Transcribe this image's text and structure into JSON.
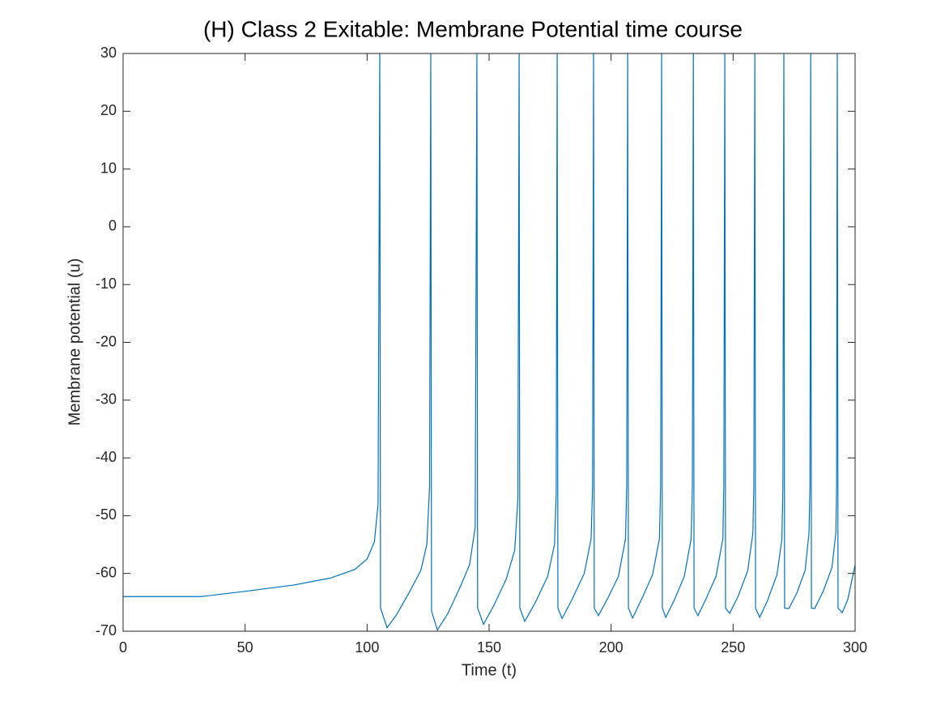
{
  "chart_data": {
    "type": "line",
    "title": "(H) Class 2 Exitable: Membrane Potential time course",
    "x_label": "Time (t)",
    "y_label": "Membrane potential (u)",
    "xlim": [
      0,
      300
    ],
    "ylim": [
      -70,
      30
    ],
    "xticks": [
      0,
      50,
      100,
      150,
      200,
      250,
      300
    ],
    "yticks": [
      -70,
      -60,
      -50,
      -40,
      -30,
      -20,
      -10,
      0,
      10,
      20,
      30
    ],
    "grid": false,
    "series": [
      {
        "color": "#0072bd",
        "x": [
          0,
          32,
          50,
          70,
          85,
          95,
          100,
          103,
          104.5,
          105.2,
          105.5,
          108.2,
          112,
          117,
          122,
          124.5,
          125.6,
          126.1,
          126.4,
          128.8,
          133,
          138,
          142,
          144.3,
          145,
          145.3,
          147.7,
          152,
          157,
          160.5,
          161.8,
          162.3,
          162.6,
          164.6,
          169,
          174,
          176.8,
          177.5,
          177.9,
          178.2,
          179.9,
          184,
          189,
          191.8,
          192.4,
          192.8,
          193.1,
          194.8,
          199,
          203,
          205.9,
          206.4,
          206.8,
          207.1,
          208.8,
          213,
          217,
          219.8,
          220.3,
          220.7,
          221,
          222.4,
          226,
          230,
          232.8,
          233.3,
          233.7,
          234,
          235.6,
          239,
          243,
          245.8,
          246.2,
          246.6,
          246.9,
          248.6,
          252,
          256,
          258.1,
          258.5,
          258.9,
          259.2,
          260.9,
          264,
          268,
          270,
          270.4,
          270.8,
          271.1,
          272.8,
          276,
          279.5,
          281.1,
          281.5,
          281.8,
          282.1,
          283.4,
          287,
          290.5,
          292.1,
          292.4,
          292.7,
          293,
          294.7,
          297,
          300
        ],
        "values": [
          -64,
          -64,
          -63.1,
          -62,
          -60.8,
          -59.3,
          -57.5,
          -54.5,
          -48,
          30,
          -66,
          -69.4,
          -67.2,
          -63.5,
          -59.5,
          -55,
          -45,
          30,
          -66.5,
          -69.8,
          -67,
          -62.5,
          -58.5,
          -52,
          30,
          -66,
          -68.8,
          -65.5,
          -61,
          -56,
          -47,
          30,
          -66,
          -68.3,
          -65,
          -60.5,
          -55,
          -46,
          30,
          -66,
          -67.8,
          -64.5,
          -60,
          -54,
          -45,
          30,
          -66,
          -67.3,
          -64,
          -60.5,
          -54,
          -45,
          30,
          -66,
          -67.7,
          -64,
          -60.2,
          -54,
          -45,
          30,
          -66,
          -67.6,
          -64.5,
          -60.5,
          -54,
          -45,
          30,
          -66,
          -67.3,
          -64.3,
          -60.5,
          -54,
          -45,
          30,
          -66,
          -66.9,
          -64,
          -59.5,
          -53,
          -45,
          30,
          -66,
          -67.6,
          -64.8,
          -60.2,
          -54,
          -45,
          30,
          -66,
          -66.1,
          -63.5,
          -59.5,
          -53,
          -45,
          30,
          -66,
          -66.1,
          -63,
          -59,
          -53,
          -45,
          30,
          -66,
          -66.8,
          -64.5,
          -58.5
        ]
      }
    ]
  }
}
